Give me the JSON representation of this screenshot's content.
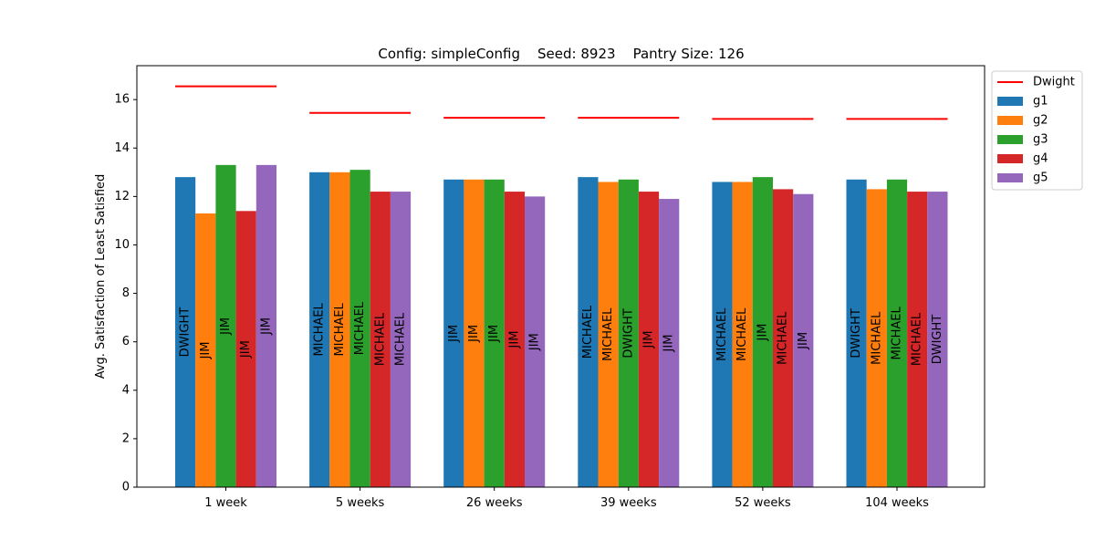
{
  "chart_data": {
    "type": "bar",
    "title": "Config: simpleConfig    Seed: 8923    Pantry Size: 126",
    "xlabel": "",
    "ylabel": "Avg. Satisfaction of Least Satisfied",
    "ylim": [
      0,
      17.4
    ],
    "yticks": [
      "0",
      "2",
      "4",
      "6",
      "8",
      "10",
      "12",
      "14",
      "16"
    ],
    "grid": false,
    "legend_position": "top-right",
    "categories": [
      "1 week",
      "5 weeks",
      "26 weeks",
      "39 weeks",
      "52 weeks",
      "104 weeks"
    ],
    "series": [
      {
        "name": "g1",
        "color": "#1f77b4",
        "values": [
          12.8,
          13.0,
          12.7,
          12.8,
          12.6,
          12.7
        ],
        "bar_labels": [
          "DWIGHT",
          "MICHAEL",
          "JIM",
          "MICHAEL",
          "MICHAEL",
          "DWIGHT"
        ]
      },
      {
        "name": "g2",
        "color": "#ff7f0e",
        "values": [
          11.3,
          13.0,
          12.7,
          12.6,
          12.6,
          12.3
        ],
        "bar_labels": [
          "JIM",
          "MICHAEL",
          "JIM",
          "MICHAEL",
          "MICHAEL",
          "MICHAEL"
        ]
      },
      {
        "name": "g3",
        "color": "#2ca02c",
        "values": [
          13.3,
          13.1,
          12.7,
          12.7,
          12.8,
          12.7
        ],
        "bar_labels": [
          "JIM",
          "MICHAEL",
          "JIM",
          "DWIGHT",
          "JIM",
          "MICHAEL"
        ]
      },
      {
        "name": "g4",
        "color": "#d62728",
        "values": [
          11.4,
          12.2,
          12.2,
          12.2,
          12.3,
          12.2
        ],
        "bar_labels": [
          "JIM",
          "MICHAEL",
          "JIM",
          "JIM",
          "MICHAEL",
          "MICHAEL"
        ]
      },
      {
        "name": "g5",
        "color": "#9467bd",
        "values": [
          13.3,
          12.2,
          12.0,
          11.9,
          12.1,
          12.2
        ],
        "bar_labels": [
          "JIM",
          "MICHAEL",
          "JIM",
          "JIM",
          "JIM",
          "DWIGHT"
        ]
      }
    ],
    "reference_line": {
      "name": "Dwight",
      "color": "#ff0000",
      "values": [
        16.55,
        15.45,
        15.25,
        15.25,
        15.2,
        15.2
      ]
    }
  }
}
